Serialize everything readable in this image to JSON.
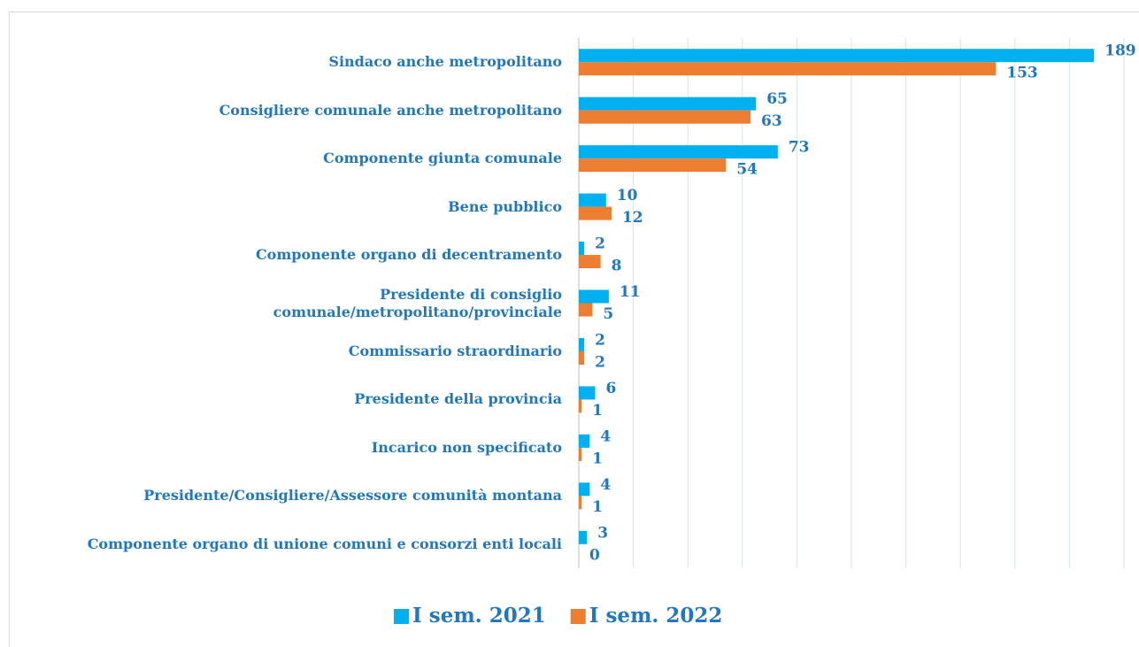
{
  "chart_data": {
    "type": "barh",
    "categories": [
      "Sindaco anche metropolitano",
      "Consigliere comunale anche metropolitano",
      "Componente giunta comunale",
      "Bene pubblico",
      "Componente organo di decentramento",
      "Presidente di consiglio comunale/metropolitano/provinciale",
      "Commissario straordinario",
      "Presidente della provincia",
      "Incarico non specificato",
      "Presidente/Consigliere/Assessore comunità montana",
      "Componente organo di unione comuni e consorzi enti locali"
    ],
    "series": [
      {
        "name": "I sem. 2021",
        "color": "#00b0f0",
        "values": [
          189,
          65,
          73,
          10,
          2,
          11,
          2,
          6,
          4,
          4,
          3
        ]
      },
      {
        "name": "I sem. 2022",
        "color": "#ed7d31",
        "values": [
          153,
          63,
          54,
          12,
          8,
          5,
          2,
          1,
          1,
          1,
          0
        ]
      }
    ],
    "xlim": [
      0,
      200
    ],
    "xticks": [
      0,
      20,
      40,
      60,
      80,
      100,
      120,
      140,
      160,
      180,
      200
    ],
    "grid": true,
    "legend": "bottom"
  }
}
